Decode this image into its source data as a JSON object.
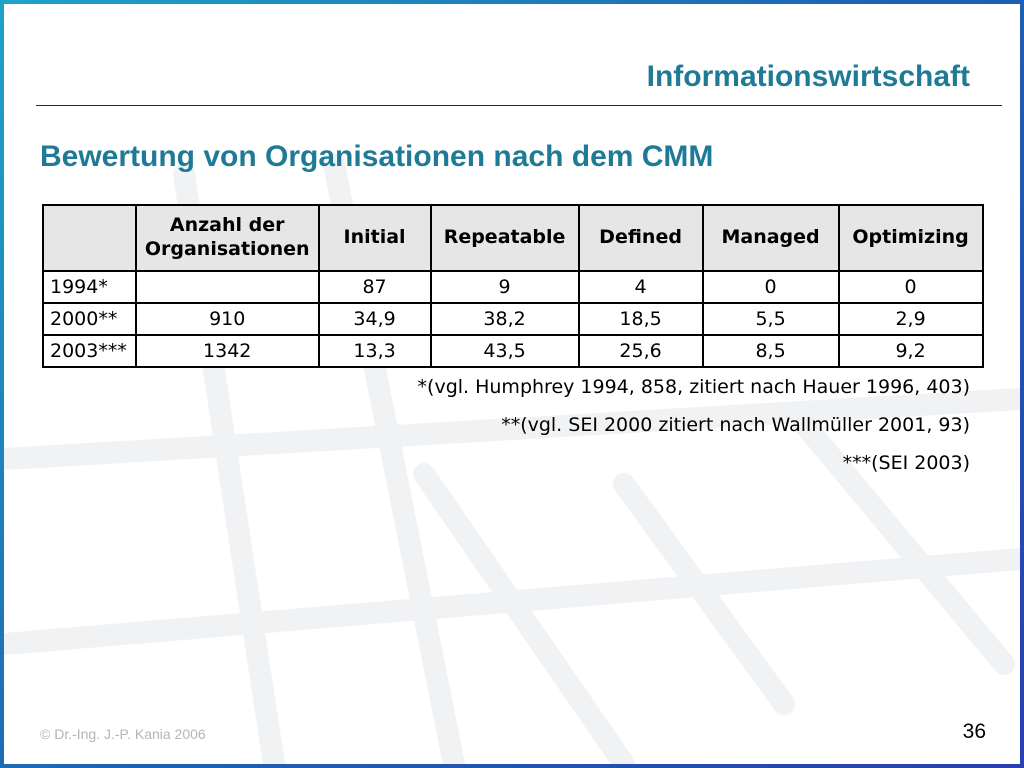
{
  "header": {
    "title": "Informationswirtschaft"
  },
  "slide": {
    "heading": "Bewertung von Organisationen nach dem CMM"
  },
  "table": {
    "columns": [
      "",
      "Anzahl der Organisationen",
      "Initial",
      "Repeatable",
      "Defined",
      "Managed",
      "Optimizing"
    ],
    "rows": [
      [
        "1994*",
        "",
        "87",
        "9",
        "4",
        "0",
        "0"
      ],
      [
        "2000**",
        "910",
        "34,9",
        "38,2",
        "18,5",
        "5,5",
        "2,9"
      ],
      [
        "2003***",
        "1342",
        "13,3",
        "43,5",
        "25,6",
        "8,5",
        "9,2"
      ]
    ]
  },
  "notes": [
    "*(vgl. Humphrey 1994, 858, zitiert nach Hauer 1996, 403)",
    "**(vgl. SEI 2000 zitiert nach Wallmüller 2001, 93)",
    "***(SEI 2003)"
  ],
  "footer": {
    "copyright": "©  Dr.-Ing. J.-P. Kania 2006",
    "page_number": "36"
  }
}
